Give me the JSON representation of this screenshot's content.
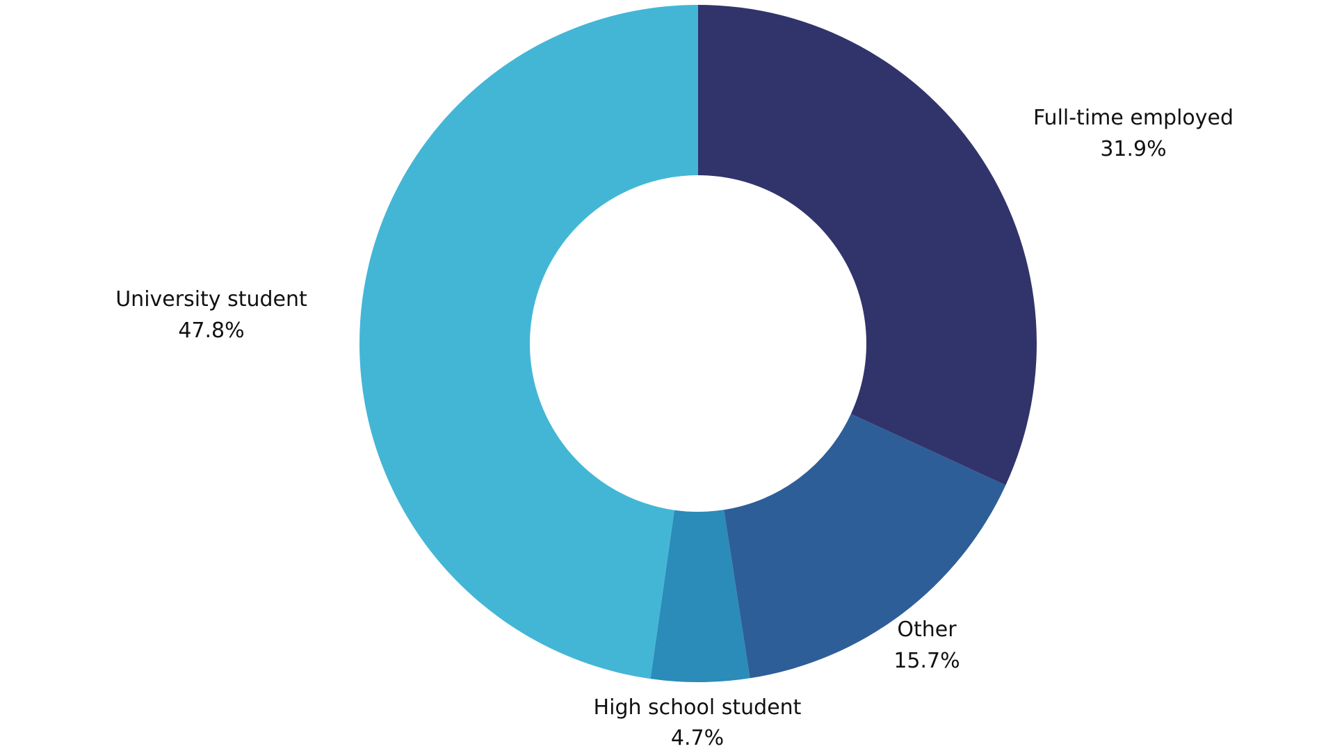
{
  "chart_data": {
    "type": "pie",
    "donut": true,
    "title": "",
    "categories": [
      "Full-time employed",
      "Other",
      "High school student",
      "University student"
    ],
    "values": [
      31.9,
      15.7,
      4.7,
      47.8
    ],
    "value_labels": [
      "31.9%",
      "15.7%",
      "4.7%",
      "47.8%"
    ],
    "colors": [
      "#31346b",
      "#2e5e98",
      "#2b8bb9",
      "#43b6d6"
    ],
    "legend": "none",
    "start_angle": "top",
    "direction": "clockwise"
  }
}
